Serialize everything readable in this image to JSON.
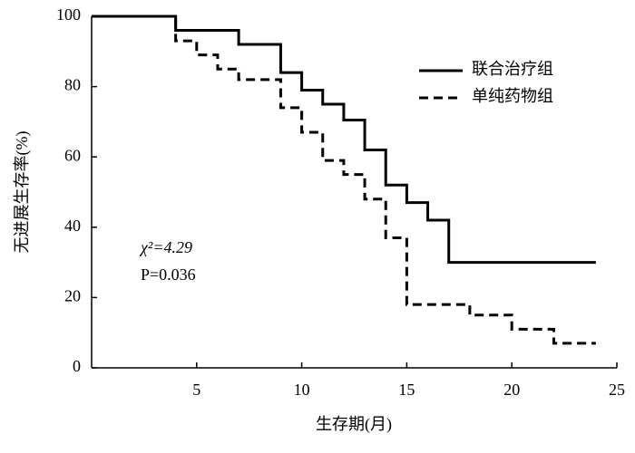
{
  "chart_data": {
    "type": "step",
    "xlabel": "生存期(月)",
    "ylabel": "无进展生存率(%)",
    "xlim": [
      0,
      25
    ],
    "xticks": [
      5,
      10,
      15,
      20,
      25
    ],
    "ylim": [
      0,
      100
    ],
    "yticks": [
      0,
      20,
      40,
      60,
      80,
      100
    ],
    "legend": "upper right",
    "annotations": [
      "χ²=4.29",
      "P=0.036"
    ],
    "series": [
      {
        "name": "联合治疗组",
        "color": "#000000",
        "dash": "solid",
        "x": [
          0,
          4,
          7,
          9,
          10,
          11,
          12,
          13,
          14,
          15,
          16,
          17,
          24
        ],
        "values": [
          100,
          96,
          92,
          84,
          79,
          75,
          70.5,
          62,
          52,
          47,
          42,
          30,
          30
        ]
      },
      {
        "name": "单纯药物组",
        "color": "#000000",
        "dash": "dashed",
        "x": [
          0,
          4,
          5,
          6,
          7,
          9,
          10,
          11,
          12,
          13,
          14,
          15,
          18,
          20,
          22,
          24
        ],
        "values": [
          100,
          93,
          89,
          85,
          82,
          74,
          67,
          59,
          55,
          48,
          37,
          18,
          15,
          11,
          7,
          7
        ]
      }
    ]
  }
}
